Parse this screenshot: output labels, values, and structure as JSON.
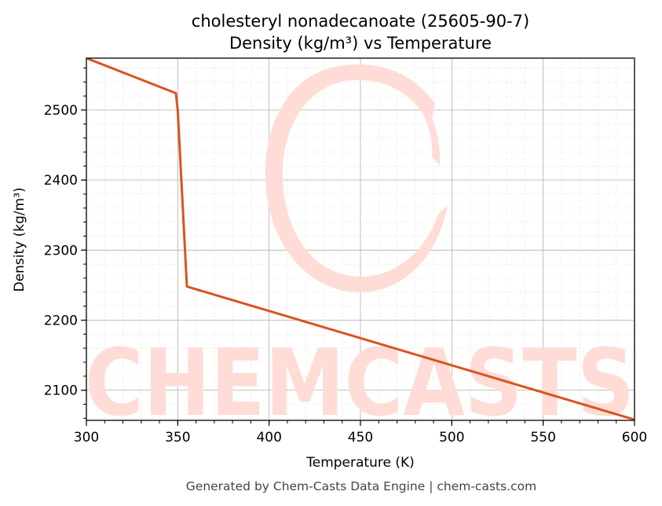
{
  "footer": "Generated by Chem-Casts Data Engine | chem-casts.com",
  "watermark": {
    "text": "CHEMCASTS",
    "color": "#ffdcd6"
  },
  "chart_data": {
    "type": "line",
    "title": "cholesteryl nonadecanoate (25605-90-7)",
    "subtitle": "Density (kg/m³) vs Temperature",
    "xlabel": "Temperature (K)",
    "ylabel": "Density (kg/m³)",
    "xlim": [
      300,
      600
    ],
    "ylim": [
      2057,
      2574
    ],
    "xticks": [
      300,
      350,
      400,
      450,
      500,
      550,
      600
    ],
    "yticks": [
      2100,
      2200,
      2300,
      2400,
      2500
    ],
    "grid": true,
    "line_color": "#d9541e",
    "series": [
      {
        "x": [
          300,
          349,
          350,
          355,
          600
        ],
        "y": [
          2574,
          2524,
          2500,
          2248,
          2058
        ]
      }
    ]
  }
}
